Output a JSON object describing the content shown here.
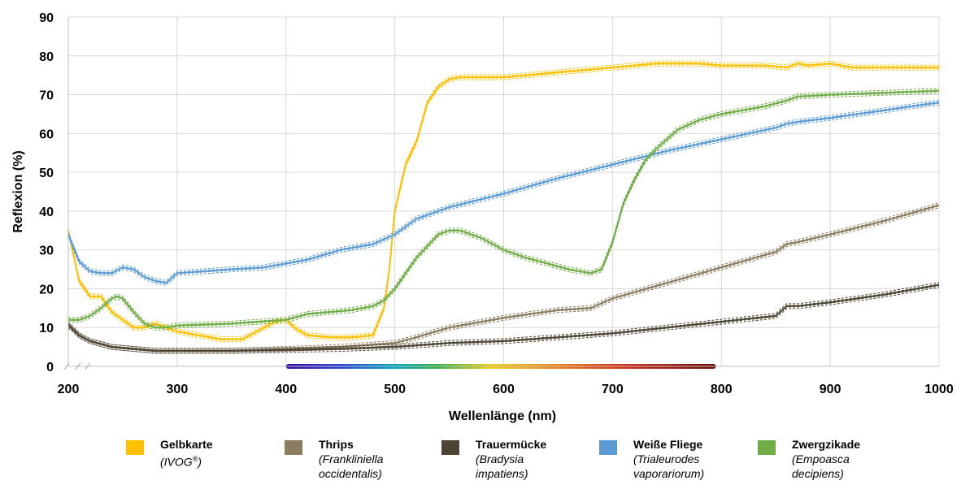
{
  "chart_data": {
    "type": "line",
    "xlabel": "Wellenlänge (nm)",
    "ylabel": "Reflexion (%)",
    "xlim": [
      200,
      1000
    ],
    "ylim": [
      0,
      90
    ],
    "x_ticks": [
      "200",
      "300",
      "400",
      "500",
      "600",
      "700",
      "800",
      "900",
      "1000"
    ],
    "y_ticks": [
      "0",
      "10",
      "20",
      "30",
      "40",
      "50",
      "60",
      "70",
      "80",
      "90"
    ],
    "grid": true,
    "legend_position": "bottom",
    "visible_spectrum_band": [
      400,
      795
    ],
    "series": [
      {
        "name": "Gelbkarte",
        "subtitle": "(IVOG®)",
        "color": "#ffc000",
        "x": [
          200,
          210,
          220,
          230,
          240,
          250,
          260,
          270,
          280,
          290,
          300,
          320,
          340,
          360,
          380,
          390,
          400,
          410,
          420,
          440,
          460,
          480,
          490,
          495,
          500,
          510,
          520,
          530,
          540,
          550,
          560,
          580,
          600,
          620,
          640,
          660,
          680,
          700,
          720,
          740,
          760,
          780,
          800,
          820,
          840,
          860,
          870,
          880,
          900,
          920,
          940,
          960,
          980,
          1000
        ],
        "y": [
          35,
          22,
          18,
          18,
          14,
          12,
          10,
          10,
          11,
          10,
          9,
          8,
          7,
          7,
          10,
          11.5,
          12,
          9.5,
          8,
          7.5,
          7.5,
          8,
          15,
          25,
          40,
          52,
          58,
          68,
          72,
          74,
          74.5,
          74.5,
          74.5,
          75,
          75.5,
          76,
          76.5,
          77,
          77.5,
          78,
          78,
          78,
          77.5,
          77.5,
          77.5,
          77,
          78,
          77.5,
          78,
          77,
          77,
          77,
          77,
          77
        ]
      },
      {
        "name": "Thrips",
        "subtitle": "(Frankliniella occidentalis)",
        "color": "#8b7d62",
        "x": [
          200,
          210,
          220,
          240,
          260,
          280,
          300,
          350,
          400,
          450,
          500,
          520,
          550,
          600,
          650,
          680,
          700,
          750,
          800,
          850,
          860,
          870,
          900,
          950,
          1000
        ],
        "y": [
          11,
          8,
          6.5,
          5,
          4.5,
          4,
          4,
          4,
          4.5,
          5,
          6,
          7.5,
          10,
          12.5,
          14.5,
          15,
          17.5,
          21.5,
          25.5,
          29.5,
          31.5,
          32,
          34,
          37.5,
          41.5
        ]
      },
      {
        "name": "Trauermücke",
        "subtitle": "(Bradysia impatiens)",
        "color": "#4d4433",
        "x": [
          200,
          210,
          220,
          240,
          260,
          280,
          300,
          350,
          400,
          450,
          500,
          550,
          600,
          650,
          700,
          750,
          800,
          850,
          860,
          870,
          900,
          950,
          1000
        ],
        "y": [
          10.5,
          8,
          6.5,
          5,
          4.5,
          4,
          4,
          4,
          4.2,
          4.5,
          5,
          6,
          6.5,
          7.5,
          8.5,
          10,
          11.5,
          13,
          15.5,
          15.5,
          16.5,
          18.5,
          21
        ]
      },
      {
        "name": "Weiße Fliege",
        "subtitle": "(Trialeurodes vaporariorum)",
        "color": "#5b9bd5",
        "x": [
          200,
          210,
          220,
          230,
          240,
          250,
          260,
          270,
          280,
          290,
          300,
          350,
          380,
          400,
          420,
          450,
          480,
          500,
          520,
          550,
          600,
          650,
          700,
          750,
          800,
          850,
          860,
          870,
          900,
          950,
          1000
        ],
        "y": [
          34,
          27,
          24.5,
          24,
          24,
          25.5,
          25,
          23,
          22,
          21.5,
          24,
          25,
          25.5,
          26.5,
          27.5,
          30,
          31.5,
          34,
          38,
          41,
          44.5,
          48.5,
          52,
          55.5,
          58.5,
          61.5,
          62.5,
          63,
          64,
          66,
          68
        ]
      },
      {
        "name": "Zwergzikade",
        "subtitle": "(Empoasca decipiens)",
        "color": "#70ad47",
        "x": [
          200,
          210,
          220,
          230,
          240,
          245,
          250,
          260,
          270,
          280,
          290,
          300,
          350,
          400,
          420,
          440,
          460,
          480,
          490,
          500,
          510,
          520,
          530,
          540,
          550,
          560,
          580,
          600,
          620,
          640,
          660,
          680,
          690,
          700,
          710,
          720,
          730,
          740,
          750,
          760,
          780,
          800,
          820,
          840,
          860,
          870,
          900,
          950,
          1000
        ],
        "y": [
          12,
          12,
          13,
          15,
          17.5,
          18,
          17.5,
          14,
          11,
          10,
          10,
          10.5,
          11,
          12,
          13.5,
          14,
          14.5,
          15.5,
          17,
          20,
          24,
          28,
          31,
          34,
          35,
          35,
          33,
          30,
          28,
          26.5,
          25,
          24,
          25,
          32,
          42,
          48,
          53,
          56,
          58.5,
          61,
          63.5,
          65,
          66,
          67,
          68.5,
          69.5,
          70,
          70.5,
          71
        ]
      }
    ]
  }
}
